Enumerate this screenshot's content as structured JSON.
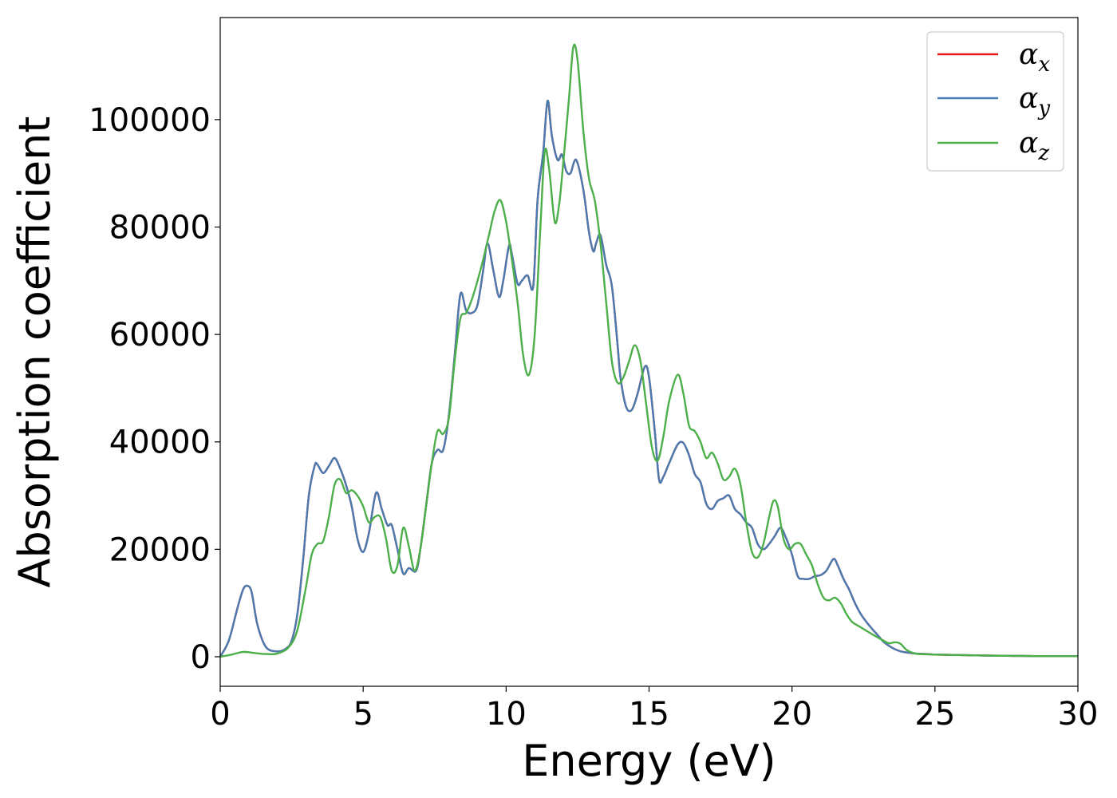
{
  "chart_data": {
    "type": "line",
    "xlabel": "Energy (eV)",
    "ylabel": "Absorption coefficient",
    "xlim": [
      0,
      30
    ],
    "ylim": [
      -5500,
      119000
    ],
    "xticks": [
      0,
      5,
      10,
      15,
      20,
      25,
      30
    ],
    "yticks": [
      0,
      20000,
      40000,
      60000,
      80000,
      100000
    ],
    "grid": false,
    "legend_position": "top-right",
    "series": [
      {
        "name": "α_x",
        "base": "α",
        "sub": "x",
        "color": "#e41a1c",
        "x": [
          0,
          0.3,
          0.6,
          0.8,
          0.95,
          1.1,
          1.3,
          1.6,
          2.0,
          2.3,
          2.5,
          2.7,
          2.9,
          3.1,
          3.3,
          3.4,
          3.6,
          3.8,
          4.0,
          4.2,
          4.4,
          4.6,
          4.8,
          5.0,
          5.2,
          5.45,
          5.65,
          5.85,
          6.0,
          6.2,
          6.4,
          6.6,
          6.85,
          7.0,
          7.2,
          7.4,
          7.6,
          7.8,
          8.0,
          8.2,
          8.4,
          8.6,
          8.8,
          9.0,
          9.2,
          9.35,
          9.55,
          9.75,
          9.9,
          10.1,
          10.2,
          10.4,
          10.55,
          10.75,
          10.95,
          11.1,
          11.3,
          11.45,
          11.6,
          11.8,
          11.95,
          12.1,
          12.25,
          12.45,
          12.7,
          12.9,
          13.05,
          13.15,
          13.3,
          13.5,
          13.7,
          13.9,
          14.0,
          14.2,
          14.4,
          14.6,
          14.85,
          15.0,
          15.2,
          15.35,
          15.5,
          15.7,
          16.0,
          16.2,
          16.4,
          16.6,
          16.8,
          17.0,
          17.2,
          17.4,
          17.6,
          17.8,
          18.0,
          18.2,
          18.4,
          18.6,
          18.8,
          19.0,
          19.2,
          19.4,
          19.6,
          19.8,
          20.0,
          20.2,
          20.4,
          20.6,
          20.8,
          21.0,
          21.2,
          21.45,
          21.6,
          21.8,
          22.0,
          22.2,
          22.4,
          22.6,
          22.8,
          23.0,
          23.2,
          23.4,
          23.6,
          23.8,
          24.0,
          24.3,
          24.7,
          25.0,
          26.0,
          27.0,
          28.0,
          29.0,
          30.0
        ],
        "y": [
          0,
          3000,
          9000,
          12500,
          13200,
          12000,
          6000,
          1800,
          1000,
          1500,
          3000,
          8000,
          18000,
          30000,
          35500,
          35800,
          34200,
          35500,
          37000,
          35000,
          32000,
          28000,
          22000,
          19500,
          23000,
          30500,
          27500,
          24500,
          24500,
          20000,
          15500,
          16500,
          16000,
          20000,
          28000,
          36000,
          38500,
          38500,
          45000,
          56000,
          67500,
          64500,
          64000,
          65500,
          72000,
          77000,
          72000,
          67000,
          70000,
          76500,
          75000,
          69500,
          70000,
          71000,
          69000,
          85000,
          94000,
          103500,
          97000,
          92500,
          93500,
          90500,
          90000,
          92500,
          87000,
          79000,
          75500,
          77000,
          78500,
          73000,
          69000,
          58000,
          52000,
          46500,
          46000,
          49000,
          54000,
          52000,
          42000,
          33000,
          33500,
          36000,
          39500,
          39800,
          37500,
          34000,
          32500,
          28500,
          27500,
          29000,
          29500,
          30000,
          27500,
          26500,
          25000,
          24000,
          21000,
          20000,
          21000,
          22500,
          24000,
          22000,
          19000,
          15000,
          14500,
          14500,
          15000,
          15200,
          16000,
          18200,
          17000,
          14500,
          12500,
          10000,
          8000,
          6500,
          5200,
          4000,
          2800,
          2000,
          1400,
          1000,
          800,
          600,
          500,
          400,
          300,
          200,
          150,
          100,
          100
        ]
      },
      {
        "name": "α_y",
        "base": "α",
        "sub": "y",
        "color": "#4a7bb0",
        "x": [
          0,
          0.3,
          0.6,
          0.8,
          0.95,
          1.1,
          1.3,
          1.6,
          2.0,
          2.3,
          2.5,
          2.7,
          2.9,
          3.1,
          3.3,
          3.4,
          3.6,
          3.8,
          4.0,
          4.2,
          4.4,
          4.6,
          4.8,
          5.0,
          5.2,
          5.45,
          5.65,
          5.85,
          6.0,
          6.2,
          6.4,
          6.6,
          6.85,
          7.0,
          7.2,
          7.4,
          7.6,
          7.8,
          8.0,
          8.2,
          8.4,
          8.6,
          8.8,
          9.0,
          9.2,
          9.35,
          9.55,
          9.75,
          9.9,
          10.1,
          10.2,
          10.4,
          10.55,
          10.75,
          10.95,
          11.1,
          11.3,
          11.45,
          11.6,
          11.8,
          11.95,
          12.1,
          12.25,
          12.45,
          12.7,
          12.9,
          13.05,
          13.15,
          13.3,
          13.5,
          13.7,
          13.9,
          14.0,
          14.2,
          14.4,
          14.6,
          14.85,
          15.0,
          15.2,
          15.35,
          15.5,
          15.7,
          16.0,
          16.2,
          16.4,
          16.6,
          16.8,
          17.0,
          17.2,
          17.4,
          17.6,
          17.8,
          18.0,
          18.2,
          18.4,
          18.6,
          18.8,
          19.0,
          19.2,
          19.4,
          19.6,
          19.8,
          20.0,
          20.2,
          20.4,
          20.6,
          20.8,
          21.0,
          21.2,
          21.45,
          21.6,
          21.8,
          22.0,
          22.2,
          22.4,
          22.6,
          22.8,
          23.0,
          23.2,
          23.4,
          23.6,
          23.8,
          24.0,
          24.3,
          24.7,
          25.0,
          26.0,
          27.0,
          28.0,
          29.0,
          30.0
        ],
        "y": [
          0,
          3000,
          9000,
          12500,
          13200,
          12000,
          6000,
          1800,
          1000,
          1500,
          3000,
          8000,
          18000,
          30000,
          35500,
          35800,
          34200,
          35500,
          37000,
          35000,
          32000,
          28000,
          22000,
          19500,
          23000,
          30500,
          27500,
          24500,
          24500,
          20000,
          15500,
          16500,
          16000,
          20000,
          28000,
          36000,
          38500,
          38500,
          45000,
          56000,
          67500,
          64500,
          64000,
          65500,
          72000,
          77000,
          72000,
          67000,
          70000,
          76500,
          75000,
          69500,
          70000,
          71000,
          69000,
          85000,
          94000,
          103500,
          97000,
          92500,
          93500,
          90500,
          90000,
          92500,
          87000,
          79000,
          75500,
          77000,
          78500,
          73000,
          69000,
          58000,
          52000,
          46500,
          46000,
          49000,
          54000,
          52000,
          42000,
          33000,
          33500,
          36000,
          39500,
          39800,
          37500,
          34000,
          32500,
          28500,
          27500,
          29000,
          29500,
          30000,
          27500,
          26500,
          25000,
          24000,
          21000,
          20000,
          21000,
          22500,
          24000,
          22000,
          19000,
          15000,
          14500,
          14500,
          15000,
          15200,
          16000,
          18200,
          17000,
          14500,
          12500,
          10000,
          8000,
          6500,
          5200,
          4000,
          2800,
          2000,
          1400,
          1000,
          800,
          600,
          500,
          400,
          300,
          200,
          150,
          100,
          100
        ]
      },
      {
        "name": "α_z",
        "base": "α",
        "sub": "z",
        "color": "#4daf4a",
        "x": [
          0,
          0.4,
          0.8,
          1.2,
          1.6,
          2.0,
          2.4,
          2.7,
          3.0,
          3.2,
          3.4,
          3.6,
          3.8,
          4.0,
          4.2,
          4.4,
          4.6,
          4.8,
          5.0,
          5.2,
          5.4,
          5.6,
          5.8,
          6.0,
          6.2,
          6.4,
          6.6,
          6.8,
          7.0,
          7.2,
          7.4,
          7.6,
          7.8,
          8.0,
          8.2,
          8.4,
          8.6,
          8.8,
          9.0,
          9.2,
          9.4,
          9.6,
          9.8,
          10.0,
          10.2,
          10.4,
          10.6,
          10.8,
          11.0,
          11.2,
          11.35,
          11.5,
          11.7,
          11.85,
          12.0,
          12.2,
          12.35,
          12.5,
          12.7,
          12.9,
          13.1,
          13.3,
          13.5,
          13.7,
          13.9,
          14.1,
          14.3,
          14.5,
          14.7,
          14.9,
          15.1,
          15.3,
          15.5,
          15.7,
          16.0,
          16.2,
          16.4,
          16.6,
          16.8,
          17.0,
          17.2,
          17.4,
          17.6,
          17.8,
          18.0,
          18.2,
          18.4,
          18.6,
          18.8,
          19.0,
          19.2,
          19.35,
          19.5,
          19.7,
          19.9,
          20.1,
          20.3,
          20.5,
          20.7,
          20.9,
          21.1,
          21.3,
          21.5,
          21.7,
          21.9,
          22.1,
          22.4,
          22.8,
          23.2,
          23.4,
          23.6,
          23.8,
          24.0,
          24.3,
          24.7,
          25.0,
          26.0,
          27.0,
          28.0,
          29.0,
          30.0
        ],
        "y": [
          0,
          400,
          900,
          700,
          500,
          600,
          1800,
          5000,
          13000,
          19000,
          21000,
          21500,
          26000,
          32000,
          33000,
          30500,
          31000,
          30000,
          28000,
          25000,
          26000,
          26000,
          22000,
          16000,
          17000,
          24000,
          20500,
          16000,
          20000,
          28000,
          36000,
          42000,
          41500,
          44500,
          55000,
          63000,
          64000,
          66500,
          70000,
          74000,
          78500,
          83000,
          85000,
          81000,
          74000,
          66000,
          56000,
          52500,
          60000,
          80000,
          94000,
          91000,
          81000,
          84000,
          92000,
          104000,
          113500,
          111000,
          98000,
          89000,
          85000,
          77000,
          66000,
          55000,
          51000,
          52000,
          55000,
          58000,
          55000,
          47000,
          39000,
          36500,
          41000,
          47500,
          52500,
          49000,
          43000,
          42000,
          40000,
          37000,
          38000,
          36000,
          33000,
          33500,
          35000,
          32000,
          25000,
          19500,
          18500,
          21000,
          26000,
          29000,
          28000,
          22000,
          20000,
          21000,
          21000,
          19000,
          17000,
          13500,
          11000,
          10500,
          11000,
          10000,
          8000,
          6500,
          5500,
          4200,
          3000,
          2500,
          2700,
          2400,
          1300,
          600,
          450,
          400,
          300,
          200,
          150,
          100,
          100
        ]
      }
    ]
  }
}
